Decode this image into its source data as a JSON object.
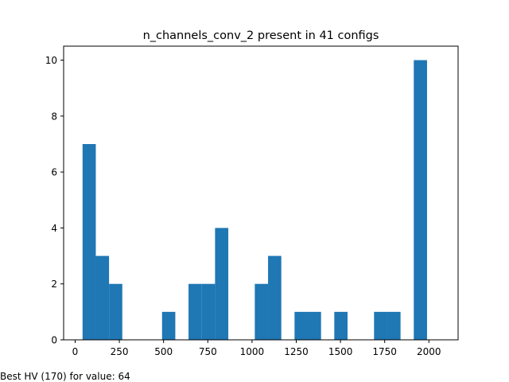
{
  "chart_data": {
    "type": "bar",
    "title": "n_channels_conv_2 present in 41 configs",
    "xlabel": "",
    "ylabel": "",
    "xlim": [
      -65,
      2165
    ],
    "ylim": [
      0,
      10.5
    ],
    "xticks": [
      0,
      250,
      500,
      750,
      1000,
      1250,
      1500,
      1750,
      2000
    ],
    "yticks": [
      0,
      2,
      4,
      6,
      8,
      10
    ],
    "bar_color": "#1f77b4",
    "bin_start": 42,
    "bin_width": 74.9,
    "counts": [
      7,
      3,
      2,
      0,
      0,
      0,
      1,
      0,
      2,
      2,
      4,
      0,
      0,
      2,
      3,
      0,
      1,
      1,
      0,
      1,
      0,
      0,
      1,
      1,
      0,
      10
    ],
    "grid": false
  },
  "footer": {
    "text": "Best HV (170) for value: 64"
  }
}
